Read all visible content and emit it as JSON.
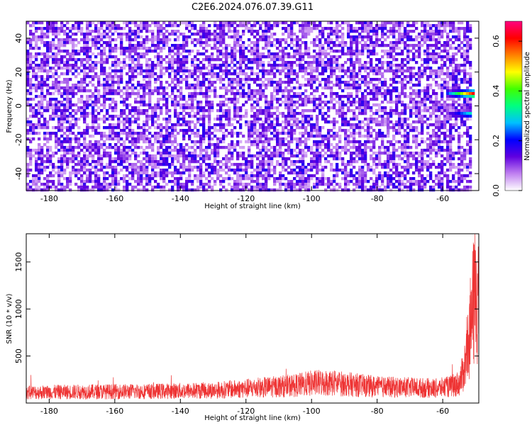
{
  "title": "C2E6.2024.076.07.39.G11",
  "chart_data": [
    {
      "type": "heatmap",
      "xlabel": "Height of straight line (km)",
      "ylabel": "Frequency (Hz)",
      "xlim": [
        -187,
        -49
      ],
      "ylim": [
        -50,
        50
      ],
      "x_ticks": [
        -180,
        -160,
        -140,
        -120,
        -100,
        -80,
        -60
      ],
      "y_ticks": [
        -40,
        -20,
        0,
        20,
        40
      ],
      "colorbar": {
        "label": "Normalized spectral amplitude",
        "range": [
          0.0,
          0.68
        ],
        "ticks": [
          0.0,
          0.2,
          0.4,
          0.6
        ],
        "colors": [
          "#ffffff",
          "#c080f0",
          "#6000e0",
          "#0000ff",
          "#00c0ff",
          "#00ff80",
          "#40ff00",
          "#ffff00",
          "#ff8000",
          "#ff0000",
          "#ff0080"
        ]
      },
      "noise_level": 0.1,
      "noise_cutoff_x": -52,
      "features": [
        {
          "x_start": -59,
          "x_end": -51,
          "frequency": 8,
          "peak_amplitude": 0.65
        },
        {
          "x_start": -59,
          "x_end": -52,
          "frequency": -4,
          "peak_amplitude": 0.35
        }
      ]
    },
    {
      "type": "line",
      "xlabel": "Height of straight line (km)",
      "ylabel": "SNR (10 * v/v)",
      "xlim": [
        -187,
        -49
      ],
      "ylim": [
        0,
        1800
      ],
      "x_ticks": [
        -180,
        -160,
        -140,
        -120,
        -100,
        -80,
        -60
      ],
      "y_ticks": [
        500,
        1000,
        1500
      ],
      "color": "#ee3333",
      "grid": false,
      "envelope": {
        "x": [
          -187,
          -170,
          -150,
          -130,
          -115,
          -105,
          -100,
          -95,
          -90,
          -85,
          -80,
          -70,
          -62,
          -58,
          -55,
          -54,
          -53,
          -52,
          -51,
          -50
        ],
        "y": [
          150,
          160,
          165,
          180,
          220,
          250,
          280,
          290,
          270,
          250,
          230,
          220,
          210,
          230,
          280,
          400,
          600,
          900,
          1300,
          1550
        ]
      }
    }
  ]
}
